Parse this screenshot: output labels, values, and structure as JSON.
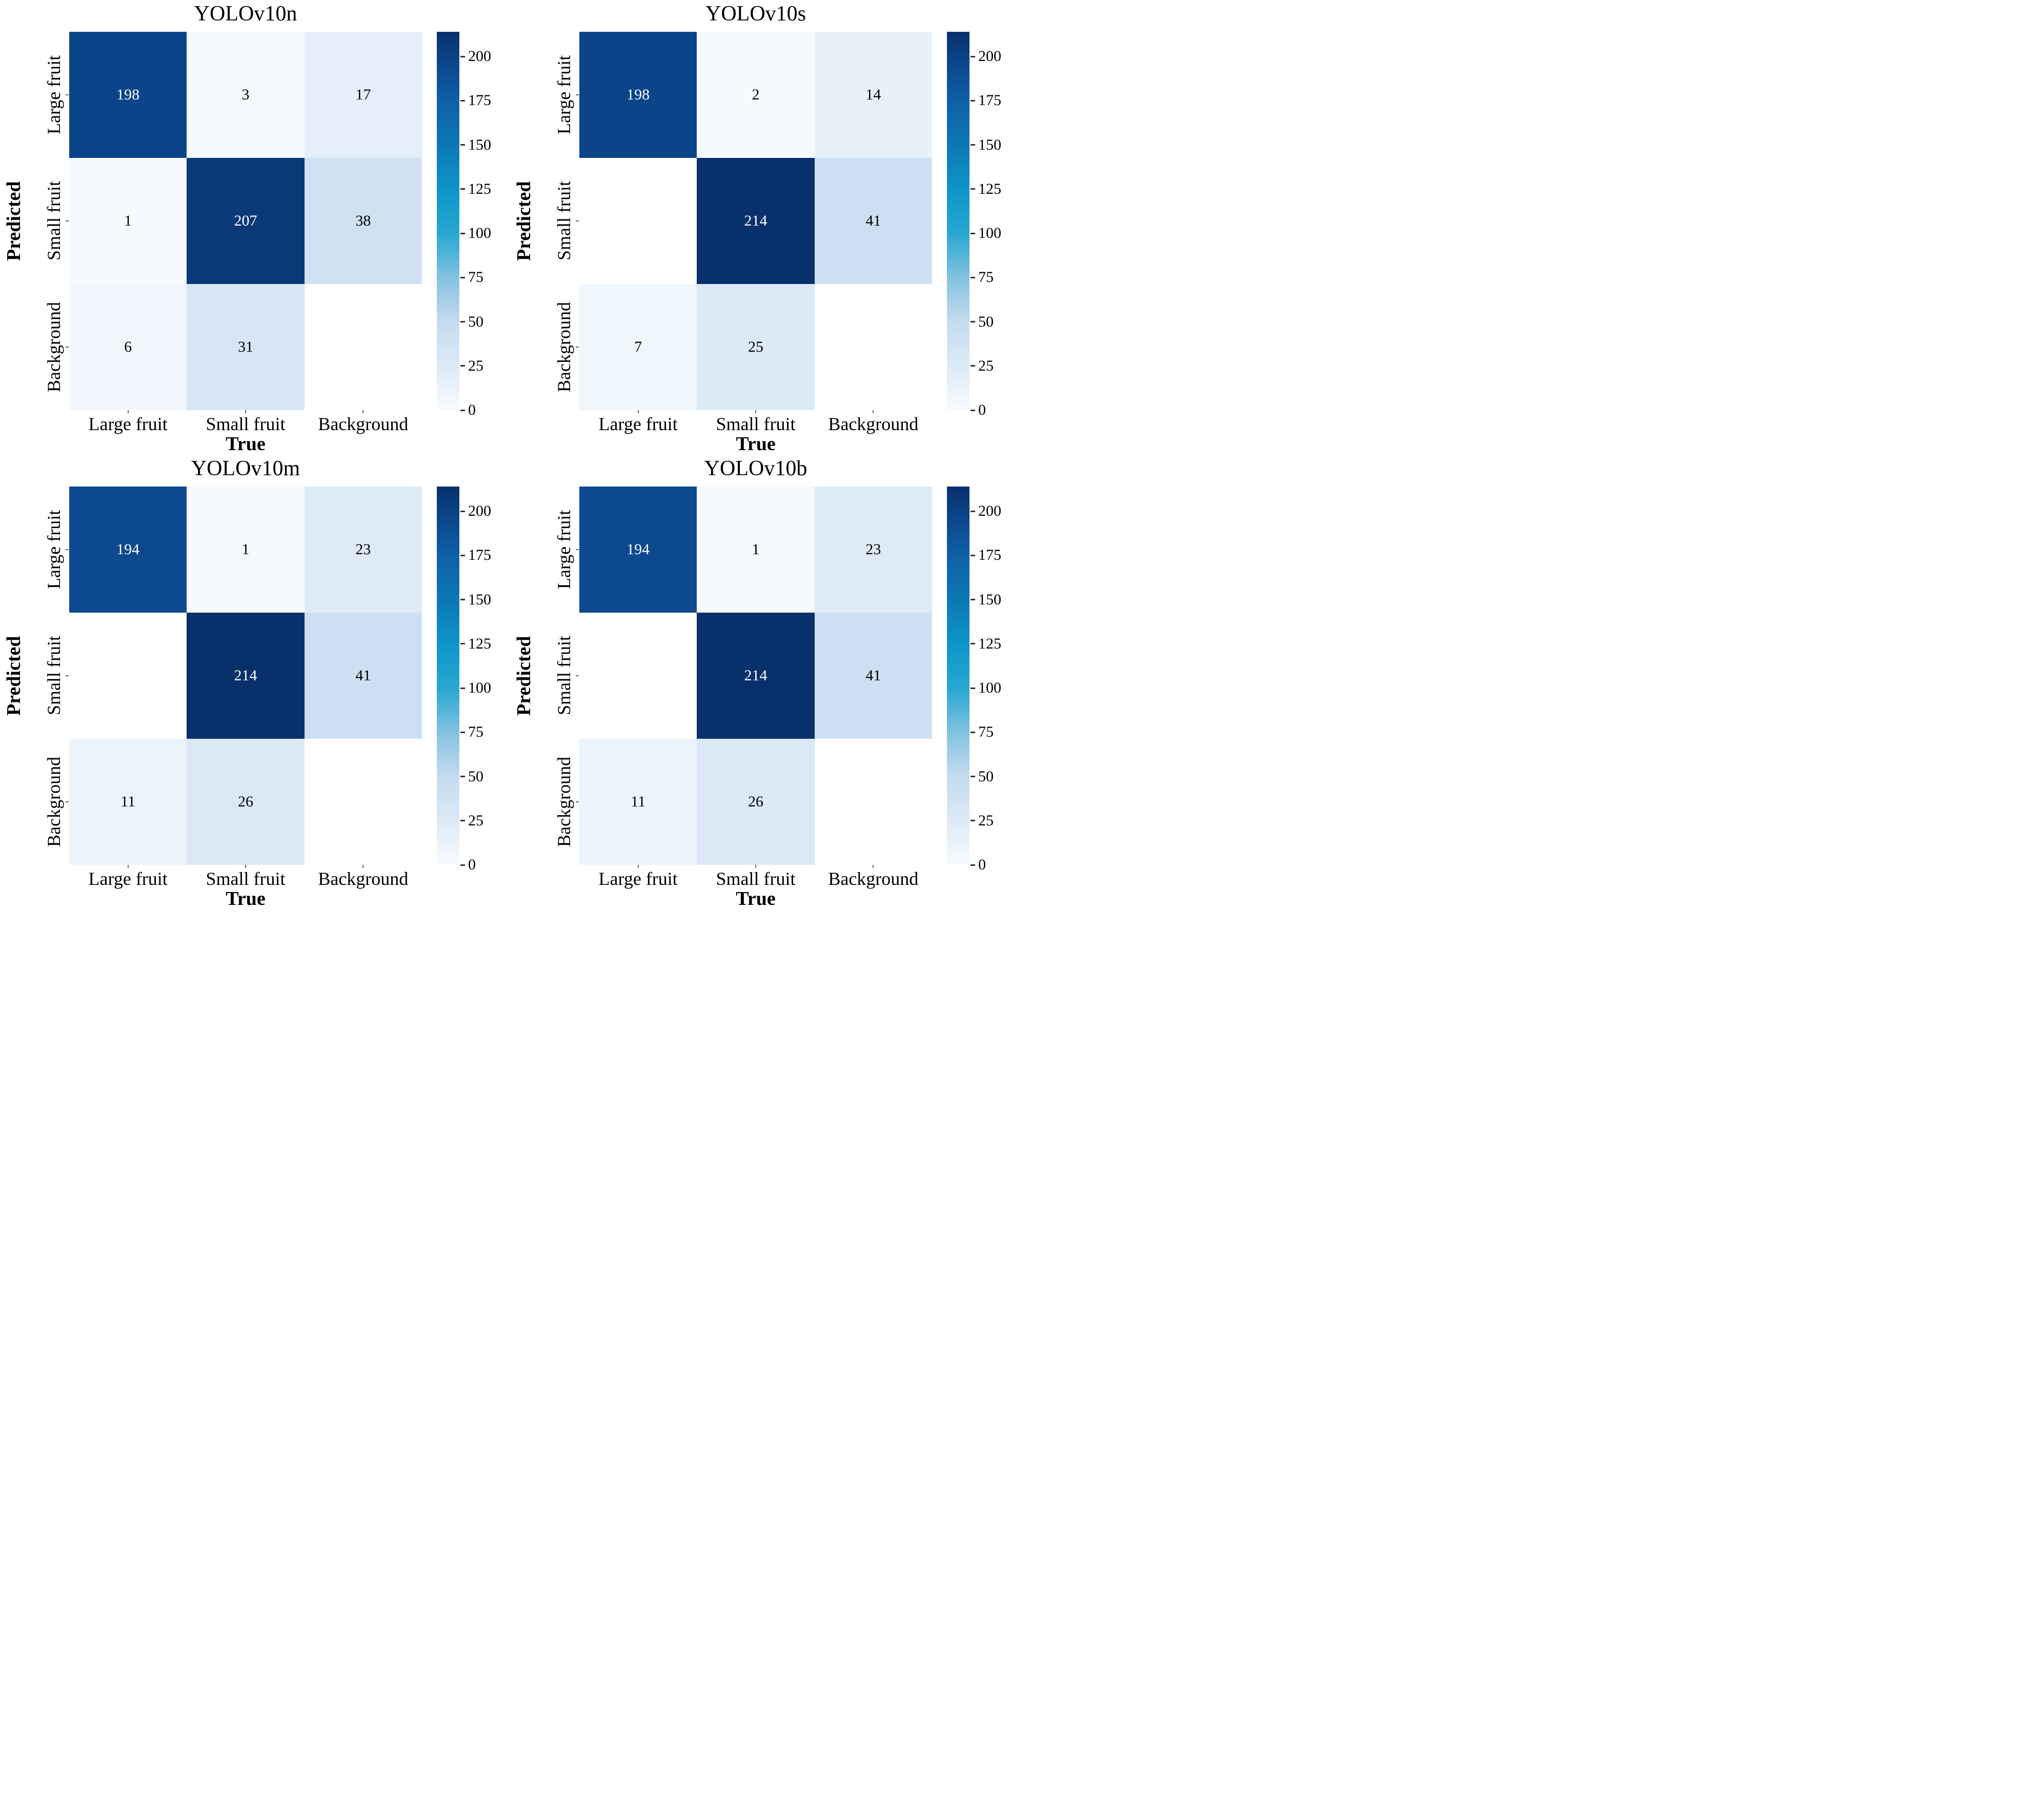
{
  "figure": {
    "background": "#ffffff",
    "text_color": "#000000",
    "annotation_light_color": "#ffffff",
    "annotation_dark_color": "#000000",
    "masked_cell_color": "#ffffff"
  },
  "colormap": {
    "name": "Blues",
    "stops": [
      [
        0.0,
        "#f7fbff"
      ],
      [
        0.117,
        "#dceaf6"
      ],
      [
        0.234,
        "#c4dbee"
      ],
      [
        0.35,
        "#82c2e0"
      ],
      [
        0.467,
        "#28a7d2"
      ],
      [
        0.584,
        "#0e95c7"
      ],
      [
        0.7,
        "#0d78b5"
      ],
      [
        0.817,
        "#0f60a6"
      ],
      [
        0.925,
        "#0c4489"
      ],
      [
        1.0,
        "#08306b"
      ]
    ],
    "text_switch_value": 150
  },
  "chart_data": [
    {
      "type": "heatmap",
      "title": "YOLOv10n",
      "xlabel": "True",
      "ylabel": "Predicted",
      "x_categories": [
        "Large fruit",
        "Small fruit",
        "Background"
      ],
      "y_categories": [
        "Large fruit",
        "Small fruit",
        "Background"
      ],
      "matrix": [
        [
          198,
          3,
          17
        ],
        [
          1,
          207,
          38
        ],
        [
          6,
          31,
          null
        ]
      ],
      "vmin": 0,
      "vmax": 214,
      "colorbar_ticks": [
        0,
        25,
        50,
        75,
        100,
        125,
        150,
        175,
        200
      ],
      "legend_position": "right",
      "grid": false
    },
    {
      "type": "heatmap",
      "title": "YOLOv10s",
      "xlabel": "True",
      "ylabel": "Predicted",
      "x_categories": [
        "Large fruit",
        "Small fruit",
        "Background"
      ],
      "y_categories": [
        "Large fruit",
        "Small fruit",
        "Background"
      ],
      "matrix": [
        [
          198,
          2,
          14
        ],
        [
          null,
          214,
          41
        ],
        [
          7,
          25,
          null
        ]
      ],
      "vmin": 0,
      "vmax": 214,
      "colorbar_ticks": [
        0,
        25,
        50,
        75,
        100,
        125,
        150,
        175,
        200
      ],
      "legend_position": "right",
      "grid": false
    },
    {
      "type": "heatmap",
      "title": "YOLOv10m",
      "xlabel": "True",
      "ylabel": "Predicted",
      "x_categories": [
        "Large fruit",
        "Small fruit",
        "Background"
      ],
      "y_categories": [
        "Large fruit",
        "Small fruit",
        "Background"
      ],
      "matrix": [
        [
          194,
          1,
          23
        ],
        [
          null,
          214,
          41
        ],
        [
          11,
          26,
          null
        ]
      ],
      "vmin": 0,
      "vmax": 214,
      "colorbar_ticks": [
        0,
        25,
        50,
        75,
        100,
        125,
        150,
        175,
        200
      ],
      "legend_position": "right",
      "grid": false
    },
    {
      "type": "heatmap",
      "title": "YOLOv10b",
      "xlabel": "True",
      "ylabel": "Predicted",
      "x_categories": [
        "Large fruit",
        "Small fruit",
        "Background"
      ],
      "y_categories": [
        "Large fruit",
        "Small fruit",
        "Background"
      ],
      "matrix": [
        [
          194,
          1,
          23
        ],
        [
          null,
          214,
          41
        ],
        [
          11,
          26,
          null
        ]
      ],
      "vmin": 0,
      "vmax": 214,
      "colorbar_ticks": [
        0,
        25,
        50,
        75,
        100,
        125,
        150,
        175,
        200
      ],
      "legend_position": "right",
      "grid": false
    }
  ]
}
